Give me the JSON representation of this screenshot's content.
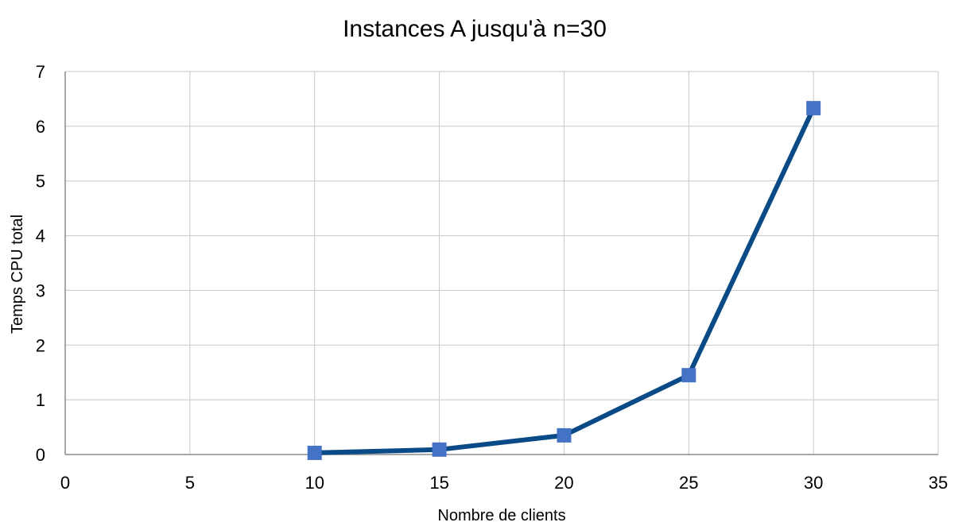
{
  "chart_data": {
    "type": "scatter",
    "title": "Instances A jusqu'à n=30",
    "xlabel": "Nombre de clients",
    "ylabel": "Temps CPU total",
    "xlim": [
      0,
      35
    ],
    "ylim": [
      0,
      7
    ],
    "xticks": [
      0,
      5,
      10,
      15,
      20,
      25,
      30,
      35
    ],
    "yticks": [
      0,
      1,
      2,
      3,
      4,
      5,
      6,
      7
    ],
    "grid": true,
    "series": [
      {
        "x": [
          10,
          15,
          20,
          25,
          30
        ],
        "y": [
          0.03,
          0.09,
          0.35,
          1.45,
          6.33
        ],
        "line_color": "#0A4A86",
        "marker": "square",
        "marker_color": "#4472C4"
      }
    ]
  }
}
